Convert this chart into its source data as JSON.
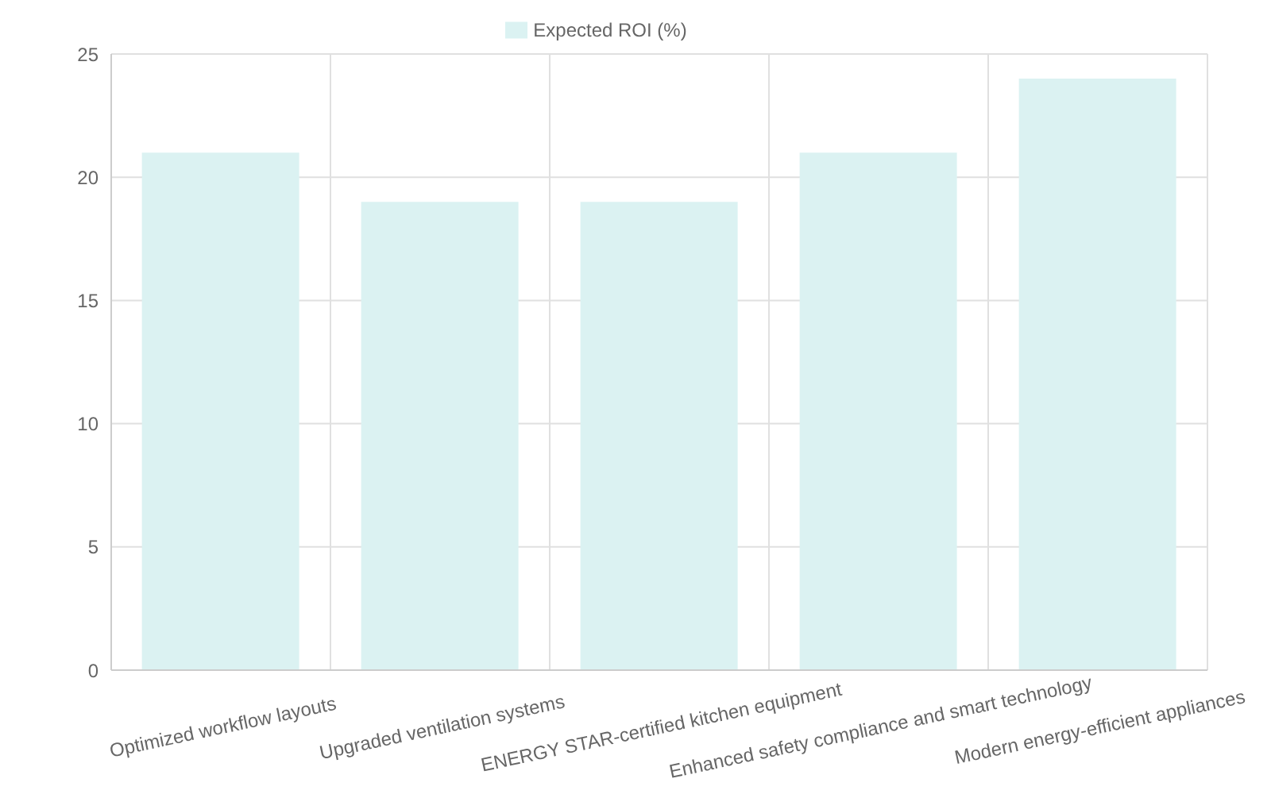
{
  "chart_data": {
    "type": "bar",
    "categories": [
      "Optimized workflow layouts",
      "Upgraded ventilation systems",
      "ENERGY STAR-certified kitchen equipment",
      "Enhanced safety compliance and smart technology",
      "Modern energy-efficient appliances"
    ],
    "series": [
      {
        "name": "Expected ROI (%)",
        "color": "#dbf2f2",
        "values": [
          21,
          19,
          19,
          21,
          24
        ]
      }
    ],
    "ylim": [
      0,
      25
    ],
    "yticks": [
      0,
      5,
      10,
      15,
      20,
      25
    ],
    "grid": true,
    "legend": "top"
  }
}
